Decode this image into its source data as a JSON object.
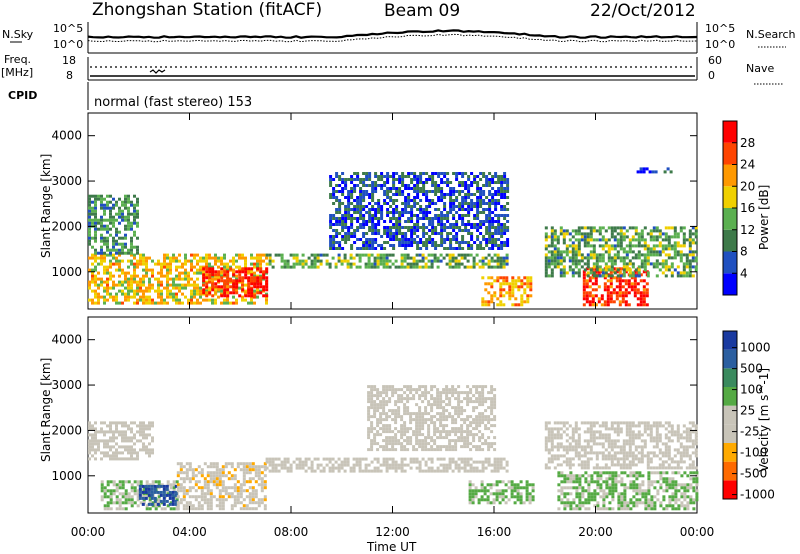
{
  "header": {
    "title": "Zhongshan Station (fitACF)",
    "beam": "Beam 09",
    "date": "22/Oct/2012"
  },
  "params_panel": {
    "left_label_1": "N.Sky",
    "left_ticks_1": [
      "10^5",
      "10^0"
    ],
    "left_label_2a": "Freq.",
    "left_label_2b": "[MHz]",
    "left_ticks_2": [
      "18",
      "8"
    ],
    "left_label_3": "CPID",
    "right_label_1": "N.Search",
    "right_ticks_1": [
      "10^5",
      "10^0"
    ],
    "right_label_2": "Nave",
    "right_ticks_2": [
      "60",
      "0"
    ],
    "cpid_text": "normal (fast stereo) 153"
  },
  "colors": {
    "power_scale": [
      "#0000ff",
      "#2050c0",
      "#3e7a4a",
      "#5bb050",
      "#f0d000",
      "#ff9900",
      "#ff4400",
      "#ff0000"
    ],
    "velocity_scale": [
      "#ff0000",
      "#ff6a00",
      "#ffaa00",
      "#c8c4b8",
      "#c8c4b8",
      "#55aa44",
      "#3a8a5e",
      "#2b5fa0",
      "#1a3aa0"
    ],
    "ground_scatter": "#c8c4b8"
  },
  "chart_data": [
    {
      "type": "heatmap",
      "title": "",
      "xlabel": "",
      "ylabel": "Slant Range [km]",
      "xlim": [
        "00:00",
        "00:00"
      ],
      "ylim": [
        180,
        4500
      ],
      "y_ticks": [
        "1000",
        "2000",
        "3000",
        "4000"
      ],
      "colorbar": {
        "label": "Power [dB]",
        "ticks": [
          "4",
          "8",
          "12",
          "16",
          "20",
          "24",
          "28"
        ],
        "range": [
          0,
          30
        ]
      },
      "echo_regions": [
        {
          "t": [
            0.0,
            7.0
          ],
          "range_km": [
            300,
            1400
          ],
          "value_db": 18
        },
        {
          "t": [
            4.5,
            7.0
          ],
          "range_km": [
            500,
            1100
          ],
          "value_db": 27
        },
        {
          "t": [
            0.0,
            2.0
          ],
          "range_km": [
            1400,
            2700
          ],
          "value_db": 10
        },
        {
          "t": [
            7.0,
            16.5
          ],
          "range_km": [
            1100,
            1400
          ],
          "value_db": 12
        },
        {
          "t": [
            9.5,
            16.5
          ],
          "range_km": [
            1500,
            3200
          ],
          "value_db": 6
        },
        {
          "t": [
            15.5,
            17.5
          ],
          "range_km": [
            300,
            900
          ],
          "value_db": 20
        },
        {
          "t": [
            19.5,
            22.0
          ],
          "range_km": [
            300,
            1100
          ],
          "value_db": 26
        },
        {
          "t": [
            18.0,
            24.0
          ],
          "range_km": [
            900,
            2000
          ],
          "value_db": 12
        },
        {
          "t": [
            21.5,
            23.0
          ],
          "range_km": [
            3200,
            3300
          ],
          "value_db": 5
        }
      ]
    },
    {
      "type": "heatmap",
      "title": "",
      "xlabel": "Time UT",
      "ylabel": "Slant Range [km]",
      "xlim": [
        "00:00",
        "00:00"
      ],
      "ylim": [
        180,
        4500
      ],
      "x_ticks": [
        "00:00",
        "04:00",
        "08:00",
        "12:00",
        "16:00",
        "20:00",
        "00:00"
      ],
      "y_ticks": [
        "1000",
        "2000",
        "3000",
        "4000"
      ],
      "colorbar": {
        "label": "Velocity [m s^-1]",
        "ticks": [
          "1000",
          "500",
          "100",
          "25",
          "-25",
          "-100",
          "-500",
          "-1000"
        ],
        "range": [
          -1200,
          1200
        ]
      },
      "echo_regions": [
        {
          "t": [
            0.0,
            2.5
          ],
          "range_km": [
            1400,
            2200
          ],
          "value_ms": 0,
          "ground_scatter": true
        },
        {
          "t": [
            0.5,
            3.5
          ],
          "range_km": [
            300,
            900
          ],
          "value_ms": 150
        },
        {
          "t": [
            2.0,
            3.5
          ],
          "range_km": [
            350,
            800
          ],
          "value_ms": 900
        },
        {
          "t": [
            3.5,
            7.0
          ],
          "range_km": [
            300,
            1300
          ],
          "value_ms": -300
        },
        {
          "t": [
            7.0,
            16.5
          ],
          "range_km": [
            1100,
            1400
          ],
          "value_ms": 0,
          "ground_scatter": true
        },
        {
          "t": [
            11.0,
            16.0
          ],
          "range_km": [
            1600,
            3000
          ],
          "value_ms": -50
        },
        {
          "t": [
            15.0,
            17.5
          ],
          "range_km": [
            400,
            900
          ],
          "value_ms": 200
        },
        {
          "t": [
            18.5,
            24.0
          ],
          "range_km": [
            300,
            1100
          ],
          "value_ms": 150
        },
        {
          "t": [
            18.0,
            24.0
          ],
          "range_km": [
            1200,
            2200
          ],
          "value_ms": 0,
          "ground_scatter": true
        }
      ]
    }
  ]
}
